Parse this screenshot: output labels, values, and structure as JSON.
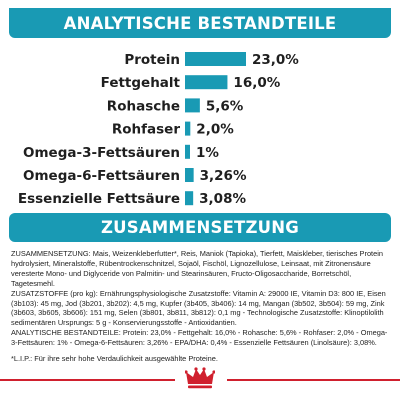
{
  "header": {
    "title": "ANALYTISCHE BESTANDTEILE"
  },
  "section": {
    "title": "ZUSAMMENSETZUNG"
  },
  "chart_data": {
    "type": "bar",
    "orientation": "horizontal",
    "categories": [
      "Protein",
      "Fettgehalt",
      "Rohasche",
      "Rohfaser",
      "Omega-3-Fettsäuren",
      "Omega-6-Fettsäuren",
      "Essenzielle Fettsäure"
    ],
    "values": [
      23.0,
      16.0,
      5.6,
      2.0,
      1,
      3.26,
      3.08
    ],
    "value_labels": [
      "23,0%",
      "16,0%",
      "5,6%",
      "2,0%",
      "1%",
      "3,26%",
      "3,08%"
    ],
    "unit": "%",
    "bar_color": "#199ab4",
    "grid": false,
    "legend": "none"
  },
  "composition": {
    "ingredients": "ZUSAMMENSETZUNG: Mais, Weizenkleberfutter*, Reis, Maniok (Tapioka), Tierfett, Maiskleber, tierisches Protein hydrolysiert, Mineralstoffe, Rübentrockenschnitzel, Sojaöl, Fischöl, Lignozellulose, Leinsaat, mit Zitronensäure veresterte Mono- und Diglyceride von Palmitin- und Stearinsäuren, Fructo-Oligosaccharide, Borretschöl, Tagetesmehl.",
    "additives": "ZUSATZSTOFFE (pro kg): Ernährungsphysiologische Zusatzstoffe: Vitamin A: 29000 IE, Vitamin D3: 800 IE, Eisen (3b103): 45 mg, Jod (3b201, 3b202): 4,5 mg, Kupfer (3b405, 3b406): 14 mg, Mangan (3b502, 3b504): 59 mg, Zink (3b603, 3b605, 3b606): 151 mg, Selen (3b801, 3b811, 3b812): 0,1 mg - Technologische Zusatzstoffe: Klinoptilolith sedimentären Ursprungs: 5 g - Konservierungsstoffe - Antioxidantien.",
    "analytical": "ANALYTISCHE BESTANDTEILE: Protein: 23,0% - Fettgehalt: 16,0% - Rohasche: 5,6% - Rohfaser: 2,0% - Omega-3-Fettsäuren: 1% - Omega-6-Fettsäuren: 3,26% - EPA/DHA: 0,4% - Essenzielle Fettsäuren (Linolsäure): 3,08%.",
    "footnote": "*L.I.P.: Für ihre sehr hohe Verdaulichkeit ausgewählte Proteine."
  },
  "footer": {
    "logo": "crown-icon",
    "accent_color": "#d0202e"
  }
}
